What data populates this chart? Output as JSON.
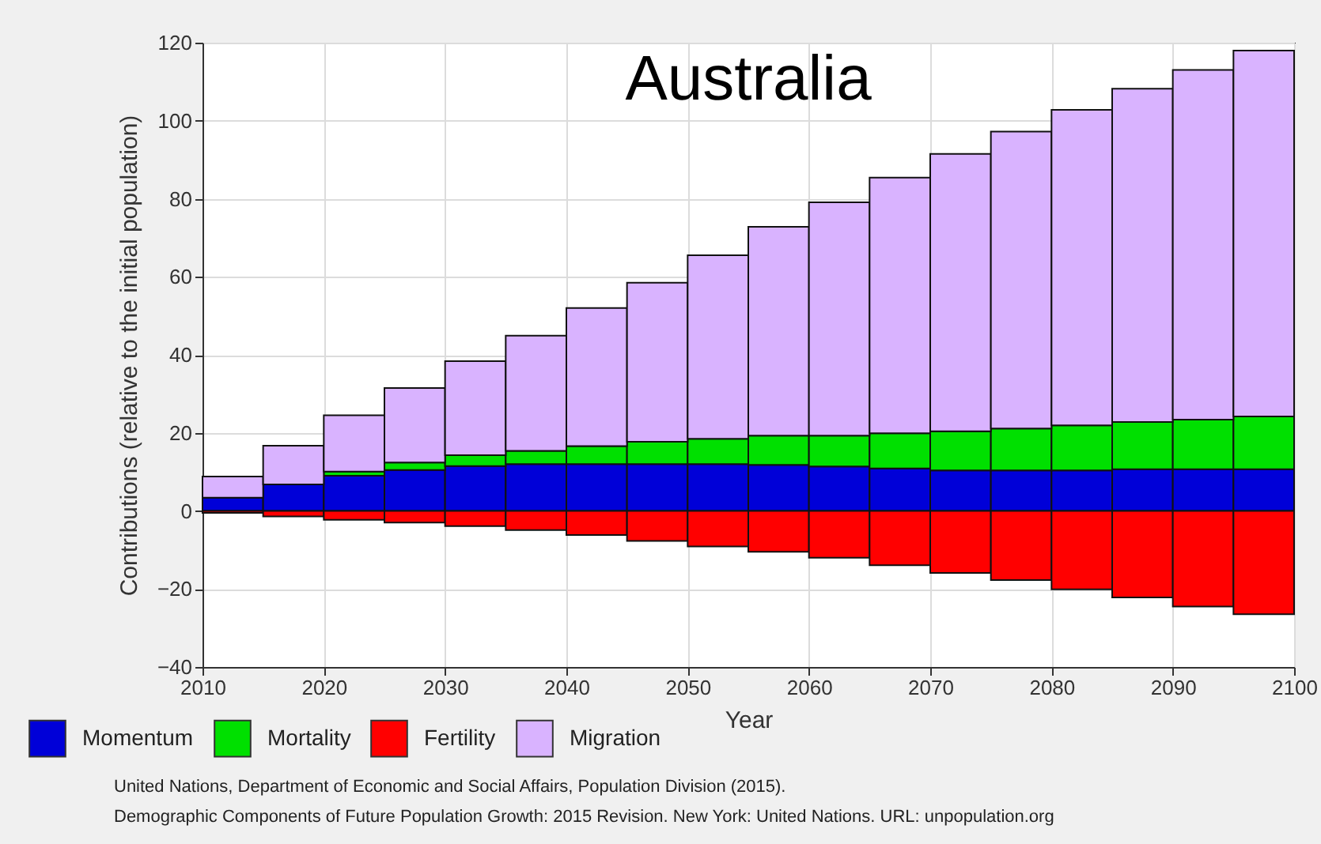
{
  "chart_data": {
    "type": "bar",
    "title": "Australia",
    "xlabel": "Year",
    "ylabel": "Contributions (relative to the initial population)",
    "x": [
      2012.5,
      2017.5,
      2022.5,
      2027.5,
      2032.5,
      2037.5,
      2042.5,
      2047.5,
      2052.5,
      2057.5,
      2062.5,
      2067.5,
      2072.5,
      2077.5,
      2082.5,
      2087.5,
      2092.5,
      2097.5
    ],
    "stacked": true,
    "series": [
      {
        "name": "Momentum",
        "color": "#0000d8",
        "values": [
          3.4,
          6.8,
          9.0,
          10.5,
          11.5,
          12,
          12,
          12,
          12,
          11.8,
          11.4,
          10.9,
          10.4,
          10.4,
          10.4,
          10.7,
          10.7,
          10.7
        ]
      },
      {
        "name": "Mortality",
        "color": "#00e000",
        "values": [
          null,
          null,
          1.1,
          1.9,
          2.8,
          3.4,
          4.6,
          5.7,
          6.5,
          7.5,
          7.9,
          9.0,
          10.0,
          10.7,
          11.5,
          12.1,
          12.7,
          13.5
        ]
      },
      {
        "name": "Fertility",
        "color": "#ff0000",
        "values": [
          -0.5,
          -1.4,
          -2.3,
          -3.0,
          -3.9,
          -4.9,
          -6.2,
          -7.7,
          -9.1,
          -10.5,
          -12.0,
          -13.9,
          -15.9,
          -17.7,
          -20.1,
          -22.2,
          -24.5,
          -26.5
        ]
      },
      {
        "name": "Migration",
        "color": "#d9b3ff",
        "values": [
          5.4,
          9.9,
          14.4,
          19.1,
          24.1,
          29.5,
          35.4,
          40.8,
          47.0,
          53.5,
          59.8,
          65.5,
          71.1,
          76.1,
          80.9,
          85.4,
          89.6,
          93.8
        ]
      }
    ],
    "xlim": [
      2010,
      2100
    ],
    "xticks": [
      2010,
      2020,
      2030,
      2040,
      2050,
      2060,
      2070,
      2080,
      2090,
      2100
    ],
    "ylim": [
      -40,
      120
    ],
    "yticks": [
      -40,
      -20,
      0,
      20,
      40,
      60,
      80,
      100,
      120
    ],
    "grid": true,
    "legend": "bottom",
    "annotations": [
      "United Nations, Department of Economic and Social Affairs, Population Division (2015).",
      "Demographic Components of Future Population Growth: 2015 Revision. New York: United Nations. URL: unpopulation.org"
    ]
  }
}
